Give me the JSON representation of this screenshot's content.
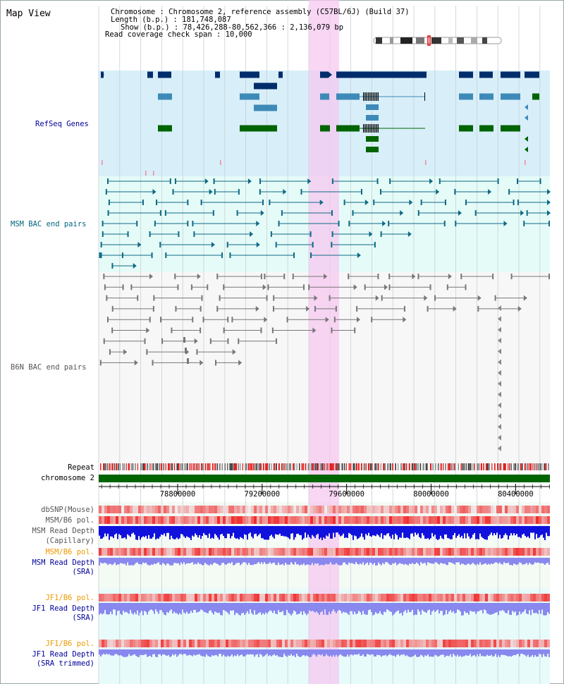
{
  "page": {
    "title": "Map View"
  },
  "header": {
    "chromosome": "Chromosome      : Chromosome 2, reference assembly (C57BL/6J) (Build 37)",
    "length": "Length (b.p.) : 181,748,087",
    "show": "Show (b.p.) : 78,426,288-80,562,366 : 2,136,079 bp",
    "coverage": "Read coverage check span : 10,000"
  },
  "tracks": {
    "refseq": "RefSeq Genes",
    "msm_bac": "MSM BAC end pairs",
    "b6n_bac": "B6N BAC end pairs",
    "repeat": "Repeat",
    "chromosome": "chromosome 2",
    "dbsnp": "dbSNP(Mouse)",
    "msm_b6_pol_1": "MSM/B6 pol.",
    "msm_depth_cap_1": "MSM Read Depth",
    "msm_depth_cap_2": "(Capillary)",
    "msm_b6_pol_2": "MSM/B6 pol.",
    "msm_depth_sra_1": "MSM Read Depth",
    "msm_depth_sra_2": "(SRA)",
    "jf1_b6_pol_1": "JF1/B6 pol.",
    "jf1_depth_1": "JF1 Read Depth",
    "jf1_depth_2": "(SRA)",
    "jf1_b6_pol_2": "JF1/B6 pol.",
    "jf1_depth_trim_1": "JF1 Read Depth",
    "jf1_depth_trim_2": "(SRA trimmed)"
  },
  "axis": {
    "range": [
      78426288,
      80562366
    ],
    "ticks": [
      {
        "label": "78800000"
      },
      {
        "label": "79200000"
      },
      {
        "label": "79600000"
      },
      {
        "label": "80000000"
      },
      {
        "label": "80400000"
      }
    ]
  },
  "colors": {
    "refseq_label": "#000099",
    "msm_label": "#006680",
    "b6n_label": "#555555",
    "orange_label": "#ee9900",
    "blue_label": "#000099",
    "highlight": "#f6c8f0",
    "gene_dark": "#002d6b",
    "gene_mid": "#3d8ab8",
    "gene_green": "#006400",
    "msm_feature": "#0e6a86",
    "b6n_feature": "#777777",
    "chrom_bar": "#006400",
    "depth_dark": "#1111dd",
    "depth_light": "#8888ee"
  },
  "icons": [
    "chromosome-ideogram-icon"
  ]
}
